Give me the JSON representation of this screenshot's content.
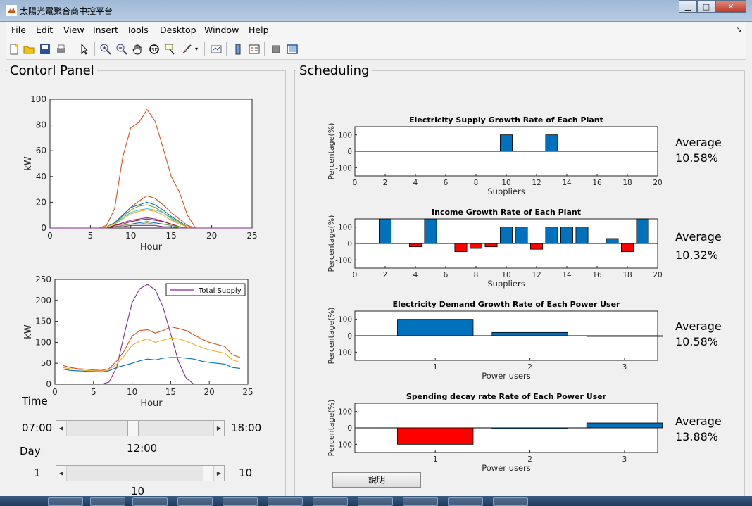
{
  "window": {
    "title": "太陽光電聚合商中控平台",
    "buttons": [
      "minimize",
      "maximize",
      "close"
    ]
  },
  "menu": [
    "File",
    "Edit",
    "View",
    "Insert",
    "Tools",
    "Desktop",
    "Window",
    "Help"
  ],
  "toolbar_icons": [
    "new-file-icon",
    "open-folder-icon",
    "save-icon",
    "print-icon",
    "pointer-icon",
    "zoom-in-icon",
    "zoom-out-icon",
    "pan-hand-icon",
    "rotate-3d-icon",
    "data-cursor-icon",
    "brush-icon",
    "dropdown-arrow-icon",
    "link-plot-icon",
    "colorbar-icon",
    "legend-icon",
    "hide-plot-tools-icon",
    "show-plot-tools-icon"
  ],
  "control_panel": {
    "title": "Contorl Panel",
    "time_label": "Time",
    "time_min": "07:00",
    "time_max": "18:00",
    "time_value": "12:00",
    "time_fraction": 0.45,
    "day_label": "Day",
    "day_min": "1",
    "day_max": "10",
    "day_value": "10",
    "day_fraction": 1.0
  },
  "scheduling": {
    "title": "Scheduling",
    "explain_button": "說明"
  },
  "chart_data": [
    {
      "id": "pv-output",
      "type": "line",
      "xlabel": "Hour",
      "ylabel": "kW",
      "xlim": [
        0,
        25
      ],
      "ylim": [
        0,
        100
      ],
      "xticks": [
        0,
        5,
        10,
        15,
        20,
        25
      ],
      "yticks": [
        0,
        20,
        40,
        60,
        80,
        100
      ],
      "series": [
        {
          "color": "#d95319",
          "x": [
            0,
            6,
            7,
            8,
            9,
            10,
            11,
            12,
            13,
            14,
            15,
            16,
            17,
            18,
            25
          ],
          "y": [
            0,
            0,
            2,
            15,
            55,
            78,
            82,
            92,
            83,
            62,
            40,
            28,
            10,
            0,
            0
          ]
        },
        {
          "color": "#d95319",
          "x": [
            0,
            6,
            7,
            8,
            9,
            10,
            11,
            12,
            13,
            14,
            15,
            16,
            17,
            18,
            25
          ],
          "y": [
            0,
            0,
            1,
            4,
            10,
            16,
            21,
            25,
            23,
            18,
            12,
            7,
            2,
            0,
            0
          ]
        },
        {
          "color": "#0072bd",
          "x": [
            0,
            6,
            7,
            8,
            9,
            10,
            11,
            12,
            13,
            14,
            15,
            16,
            17,
            18,
            25
          ],
          "y": [
            0,
            0,
            1,
            4,
            10,
            16,
            18,
            20,
            18,
            14,
            9,
            5,
            1,
            0,
            0
          ]
        },
        {
          "color": "#77ac30",
          "x": [
            0,
            6,
            7,
            8,
            9,
            10,
            11,
            12,
            13,
            14,
            15,
            16,
            17,
            18,
            25
          ],
          "y": [
            0,
            0,
            1,
            3,
            9,
            14,
            17,
            18,
            16,
            12,
            8,
            4,
            1,
            0,
            0
          ]
        },
        {
          "color": "#4dbeee",
          "x": [
            0,
            6,
            7,
            8,
            9,
            10,
            11,
            12,
            13,
            14,
            15,
            16,
            17,
            18,
            25
          ],
          "y": [
            0,
            0,
            1,
            3,
            8,
            12,
            14,
            15,
            14,
            12,
            7,
            3,
            1,
            0,
            0
          ]
        },
        {
          "color": "#edb120",
          "x": [
            0,
            6,
            7,
            8,
            9,
            10,
            11,
            12,
            13,
            14,
            15,
            16,
            17,
            18,
            25
          ],
          "y": [
            0,
            0,
            1,
            3,
            7,
            11,
            13,
            14,
            13,
            10,
            6,
            3,
            1,
            0,
            0
          ]
        },
        {
          "color": "#7e2f8e",
          "x": [
            0,
            6,
            7,
            8,
            9,
            10,
            11,
            12,
            13,
            14,
            15,
            16,
            17,
            18,
            25
          ],
          "y": [
            0,
            0,
            0,
            2,
            4,
            6,
            7,
            8,
            7,
            5,
            3,
            1,
            0,
            0,
            0
          ]
        },
        {
          "color": "#a2142f",
          "x": [
            0,
            6,
            7,
            8,
            9,
            10,
            11,
            12,
            13,
            14,
            15,
            16,
            17,
            18,
            25
          ],
          "y": [
            0,
            0,
            0,
            2,
            3,
            5,
            6,
            7,
            6,
            5,
            3,
            1,
            0,
            0,
            0
          ]
        },
        {
          "color": "#0072bd",
          "x": [
            0,
            6,
            7,
            8,
            9,
            10,
            11,
            12,
            13,
            14,
            15,
            16,
            17,
            18,
            25
          ],
          "y": [
            0,
            0,
            0,
            1,
            2,
            3,
            4,
            5,
            4,
            3,
            2,
            1,
            0,
            0,
            0
          ]
        },
        {
          "color": "#77ac30",
          "x": [
            0,
            6,
            7,
            8,
            9,
            10,
            11,
            12,
            13,
            14,
            15,
            16,
            17,
            18,
            25
          ],
          "y": [
            0,
            0,
            0,
            1,
            2,
            3,
            3,
            4,
            3,
            3,
            2,
            1,
            0,
            0,
            0
          ]
        },
        {
          "color": "#7e2f8e",
          "x": [
            0,
            6,
            7,
            8,
            9,
            10,
            11,
            12,
            13,
            14,
            15,
            16,
            17,
            18,
            25
          ],
          "y": [
            0,
            0,
            0,
            1,
            1,
            2,
            2,
            2,
            2,
            1,
            1,
            0,
            0,
            0,
            0
          ]
        }
      ]
    },
    {
      "id": "supply-demand",
      "type": "line",
      "xlabel": "Hour",
      "ylabel": "kW",
      "xlim": [
        0,
        25
      ],
      "ylim": [
        0,
        250
      ],
      "xticks": [
        0,
        5,
        10,
        15,
        20,
        25
      ],
      "yticks": [
        0,
        50,
        100,
        150,
        200,
        250
      ],
      "legend": "top-right",
      "series": [
        {
          "name": "Total Supply",
          "color": "#7e2f8e",
          "x": [
            6,
            7,
            8,
            9,
            10,
            11,
            12,
            13,
            14,
            15,
            16,
            17,
            18
          ],
          "y": [
            0,
            5,
            40,
            120,
            195,
            228,
            238,
            225,
            185,
            120,
            55,
            15,
            0
          ]
        },
        {
          "color": "#d95319",
          "x": [
            1,
            2,
            3,
            4,
            5,
            6,
            7,
            8,
            9,
            10,
            11,
            12,
            13,
            14,
            15,
            16,
            17,
            18,
            19,
            20,
            21,
            22,
            23,
            24
          ],
          "y": [
            45,
            40,
            37,
            36,
            34,
            33,
            37,
            55,
            80,
            115,
            128,
            130,
            122,
            128,
            137,
            133,
            128,
            118,
            108,
            100,
            95,
            90,
            70,
            64
          ]
        },
        {
          "color": "#edb120",
          "x": [
            1,
            2,
            3,
            4,
            5,
            6,
            7,
            8,
            9,
            10,
            11,
            12,
            13,
            14,
            15,
            16,
            17,
            18,
            19,
            20,
            21,
            22,
            23,
            24
          ],
          "y": [
            40,
            37,
            35,
            33,
            32,
            31,
            34,
            48,
            68,
            93,
            103,
            108,
            100,
            105,
            110,
            108,
            103,
            95,
            88,
            82,
            78,
            74,
            58,
            52
          ]
        },
        {
          "color": "#0072bd",
          "x": [
            1,
            2,
            3,
            4,
            5,
            6,
            7,
            8,
            9,
            10,
            11,
            12,
            13,
            14,
            15,
            16,
            17,
            18,
            19,
            20,
            21,
            22,
            23,
            24
          ],
          "y": [
            36,
            33,
            32,
            31,
            30,
            29,
            32,
            40,
            45,
            50,
            56,
            60,
            58,
            62,
            64,
            64,
            62,
            60,
            55,
            52,
            50,
            48,
            40,
            38
          ]
        }
      ]
    },
    {
      "id": "supply-growth",
      "type": "bar",
      "title": "Electricity Supply Growth Rate of Each Plant",
      "xlabel": "Suppliers",
      "ylabel": "Percentage(%)",
      "xlim": [
        0,
        20
      ],
      "ylim": [
        -150,
        150
      ],
      "xticks": [
        0,
        2,
        4,
        6,
        8,
        10,
        12,
        14,
        16,
        18,
        20
      ],
      "yticks": [
        100,
        0,
        -100
      ],
      "x": [
        10,
        13
      ],
      "values": [
        100,
        100
      ],
      "colors": [
        "#0072bd",
        "#0072bd"
      ],
      "average_label": "Average",
      "average": "10.58%"
    },
    {
      "id": "income-growth",
      "type": "bar",
      "title": "Income Growth Rate of Each Plant",
      "xlabel": "Suppliers",
      "ylabel": "Percentage(%)",
      "xlim": [
        0,
        20
      ],
      "ylim": [
        -150,
        150
      ],
      "xticks": [
        0,
        2,
        4,
        6,
        8,
        10,
        12,
        14,
        16,
        18,
        20
      ],
      "yticks": [
        100,
        0,
        -100
      ],
      "x": [
        2,
        4,
        5,
        7,
        8,
        9,
        10,
        11,
        12,
        13,
        14,
        15,
        17,
        18,
        19
      ],
      "values": [
        150,
        -20,
        150,
        -50,
        -30,
        -20,
        100,
        100,
        -35,
        100,
        100,
        100,
        30,
        -50,
        150
      ],
      "colors": [
        "#0072bd",
        "#ff0000",
        "#0072bd",
        "#ff0000",
        "#ff0000",
        "#ff0000",
        "#0072bd",
        "#0072bd",
        "#ff0000",
        "#0072bd",
        "#0072bd",
        "#0072bd",
        "#0072bd",
        "#ff0000",
        "#0072bd"
      ],
      "average_label": "Average",
      "average": "10.32%"
    },
    {
      "id": "demand-growth",
      "type": "bar",
      "title": "Electricity Demand Growth Rate of Each Power User",
      "xlabel": "Power users",
      "ylabel": "Percentage(%)",
      "xlim": [
        0.15,
        3.35
      ],
      "ylim": [
        -150,
        150
      ],
      "xticks": [
        1,
        2,
        3
      ],
      "yticks": [
        100,
        0,
        -100
      ],
      "x": [
        1,
        2,
        3
      ],
      "values": [
        100,
        20,
        0
      ],
      "colors": [
        "#0072bd",
        "#0072bd",
        "#0072bd"
      ],
      "average_label": "Average",
      "average": "10.58%"
    },
    {
      "id": "spending-decay",
      "type": "bar",
      "title": "Spending decay rate Rate of Each Power User",
      "xlabel": "Power users",
      "ylabel": "Percentage(%)",
      "xlim": [
        0.15,
        3.35
      ],
      "ylim": [
        -150,
        150
      ],
      "xticks": [
        1,
        2,
        3
      ],
      "yticks": [
        100,
        0,
        -100
      ],
      "x": [
        1,
        2,
        3
      ],
      "values": [
        -100,
        -5,
        30
      ],
      "colors": [
        "#ff0000",
        "#0072bd",
        "#0072bd"
      ],
      "average_label": "Average",
      "average": "13.88%"
    }
  ]
}
